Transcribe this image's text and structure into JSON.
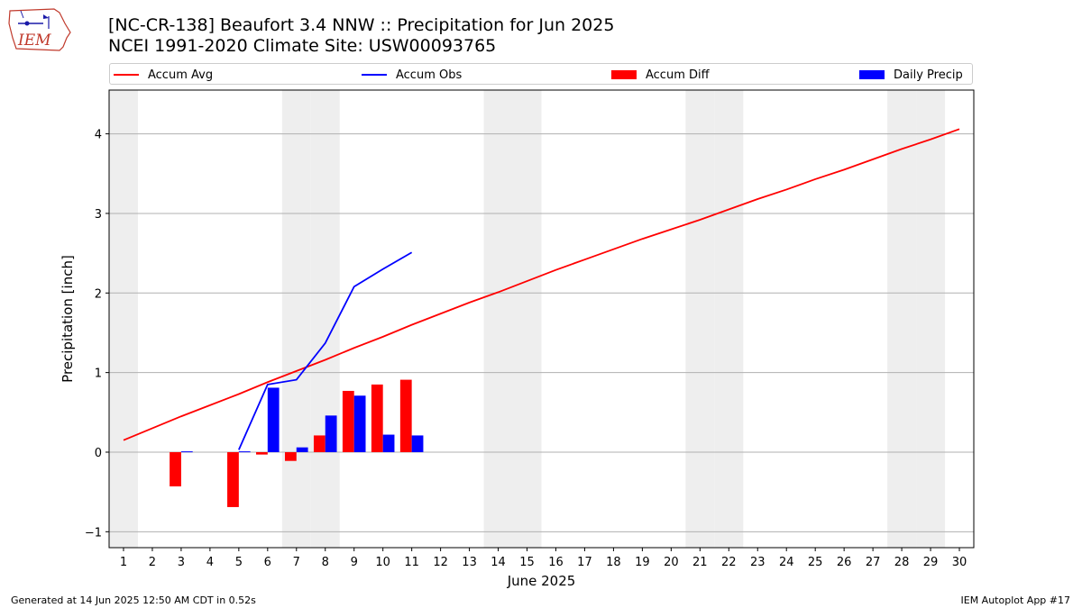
{
  "colors": {
    "accum_avg": "#ff0000",
    "accum_obs": "#0000ff",
    "accum_diff": "#ff0000",
    "daily_precip": "#0000ff",
    "weekend_band": "#eeeeee",
    "grid": "#b0b0b0"
  },
  "header": {
    "title_line1": "[NC-CR-138] Beaufort 3.4 NNW :: Precipitation for Jun 2025",
    "title_line2": "NCEI 1991-2020 Climate Site: USW00093765",
    "logo_text": "IEM"
  },
  "footer": {
    "generated": "Generated at 14 Jun 2025 12:50 AM CDT in 0.52s",
    "app": "IEM Autoplot App #17"
  },
  "chart_data": {
    "type": "bar",
    "xlabel": "June 2025",
    "ylabel": "Precipitation [inch]",
    "xlim": [
      0.5,
      30.5
    ],
    "ylim": [
      -1.2,
      4.55
    ],
    "x_ticks": [
      1,
      2,
      3,
      4,
      5,
      6,
      7,
      8,
      9,
      10,
      11,
      12,
      13,
      14,
      15,
      16,
      17,
      18,
      19,
      20,
      21,
      22,
      23,
      24,
      25,
      26,
      27,
      28,
      29,
      30
    ],
    "y_ticks": [
      -1,
      0,
      1,
      2,
      3,
      4
    ],
    "grid": "horizontal",
    "legend": "top, horizontal",
    "weekend_days": [
      1,
      7,
      8,
      14,
      15,
      21,
      22,
      28,
      29
    ],
    "series": [
      {
        "name": "Accum Avg",
        "kind": "line",
        "x": [
          1,
          2,
          3,
          4,
          5,
          6,
          7,
          8,
          9,
          10,
          11,
          12,
          13,
          14,
          15,
          16,
          17,
          18,
          19,
          20,
          21,
          22,
          23,
          24,
          25,
          26,
          27,
          28,
          29,
          30
        ],
        "values": [
          0.15,
          0.3,
          0.45,
          0.59,
          0.73,
          0.88,
          1.02,
          1.16,
          1.31,
          1.45,
          1.6,
          1.74,
          1.88,
          2.01,
          2.15,
          2.29,
          2.42,
          2.55,
          2.68,
          2.8,
          2.92,
          3.05,
          3.18,
          3.3,
          3.43,
          3.55,
          3.68,
          3.81,
          3.93,
          4.06
        ]
      },
      {
        "name": "Accum Obs",
        "kind": "line",
        "x": [
          5,
          6,
          7,
          8,
          9,
          10,
          11
        ],
        "values": [
          0.03,
          0.85,
          0.91,
          1.37,
          2.08,
          2.3,
          2.51
        ]
      },
      {
        "name": "Accum Diff",
        "kind": "bar",
        "x": [
          3,
          5,
          6,
          7,
          8,
          9,
          10,
          11
        ],
        "values": [
          -0.43,
          -0.69,
          -0.03,
          -0.11,
          0.21,
          0.77,
          0.85,
          0.91
        ]
      },
      {
        "name": "Daily Precip",
        "kind": "bar",
        "x": [
          3,
          5,
          6,
          7,
          8,
          9,
          10,
          11
        ],
        "values": [
          0.01,
          0.01,
          0.81,
          0.06,
          0.46,
          0.71,
          0.22,
          0.21
        ]
      }
    ]
  }
}
